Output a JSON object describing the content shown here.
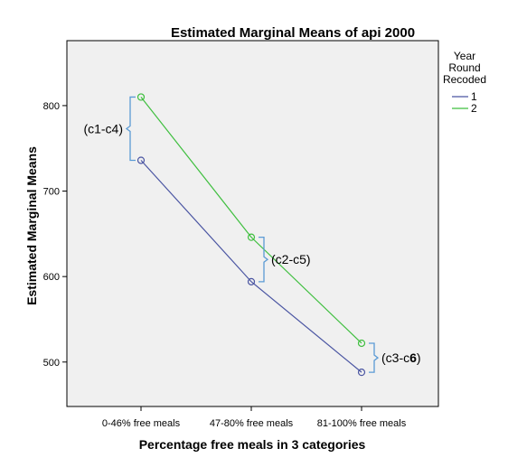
{
  "chart_data": {
    "type": "line",
    "title": "Estimated Marginal Means of api 2000",
    "xlabel": "Percentage free meals in 3 categories",
    "ylabel": "Estimated Marginal Means",
    "categories": [
      "0-46% free meals",
      "47-80% free meals",
      "81-100% free meals"
    ],
    "yticks": [
      500,
      600,
      700,
      800
    ],
    "ylim": [
      448,
      876
    ],
    "grid": false,
    "legend": {
      "title_lines": [
        "Year",
        "Round",
        "Recoded"
      ],
      "position": "right"
    },
    "series": [
      {
        "name": "1",
        "color": "#4a55a2",
        "values": [
          736,
          594,
          488
        ]
      },
      {
        "name": "2",
        "color": "#3fbf3f",
        "values": [
          810,
          646,
          522
        ]
      }
    ],
    "annotations": [
      {
        "text": "(c1-c4)",
        "category": 0,
        "from": 736,
        "to": 810,
        "side": "left"
      },
      {
        "text": "(c2-c5)",
        "category": 1,
        "from": 594,
        "to": 646,
        "side": "right"
      },
      {
        "text": "(c3-c",
        "text_bold": "6",
        "suffix": ")",
        "category": 2,
        "from": 488,
        "to": 522,
        "side": "right"
      }
    ],
    "bracket_color": "#5b9bd5",
    "plot_background": "#f0f0f0"
  }
}
